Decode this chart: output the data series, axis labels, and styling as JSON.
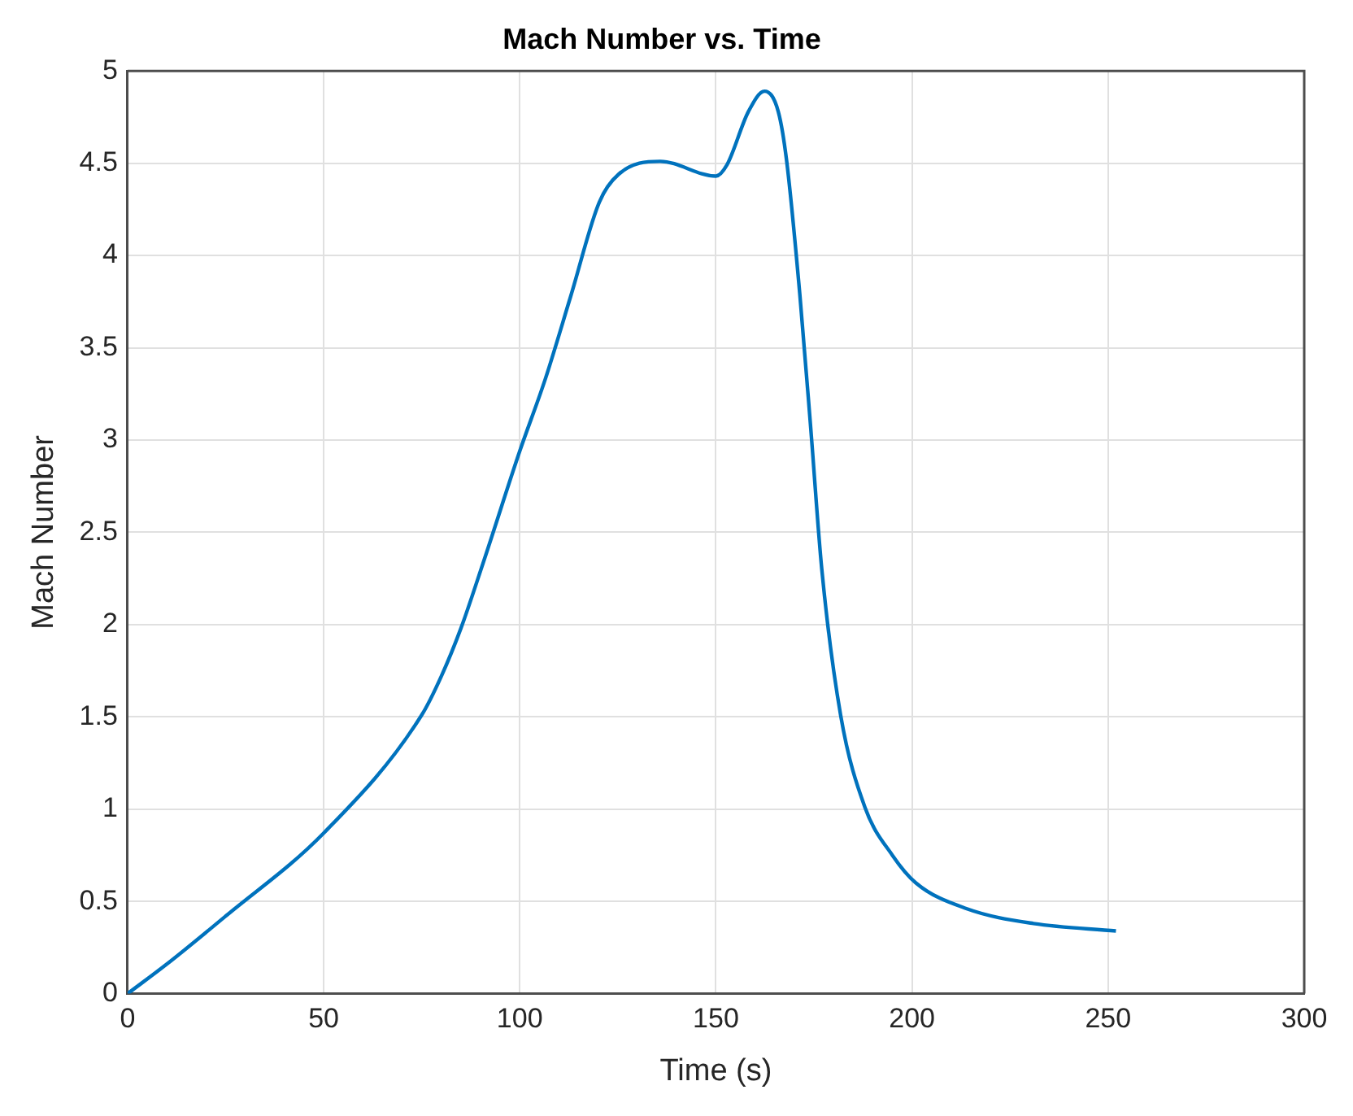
{
  "chart_data": {
    "type": "line",
    "title": "Mach Number vs. Time",
    "xlabel": "Time (s)",
    "ylabel": "Mach Number",
    "x": [
      0,
      10,
      25,
      50,
      75,
      80,
      85,
      90.6,
      100,
      106.5,
      113,
      120.3,
      125.2,
      135.8,
      150,
      152.8,
      158.3,
      162.4,
      165.9,
      168,
      171.4,
      174.2,
      177,
      181.8,
      188,
      195,
      201,
      214,
      231,
      252
    ],
    "series": [
      {
        "color": "#0072bd",
        "values": [
          0,
          0.16,
          0.42,
          0.87,
          1.51,
          1.72,
          1.98,
          2.33,
          2.94,
          3.33,
          3.78,
          4.29,
          4.44,
          4.51,
          4.43,
          4.49,
          4.78,
          4.89,
          4.78,
          4.52,
          3.79,
          3.06,
          2.3,
          1.51,
          1.01,
          0.75,
          0.6,
          0.46,
          0.38,
          0.34
        ]
      }
    ],
    "xlim": [
      0,
      300
    ],
    "xticks": [
      0,
      50,
      100,
      150,
      200,
      250,
      300
    ],
    "ylim": [
      0,
      5
    ],
    "yticks": [
      0,
      0.5,
      1,
      1.5,
      2,
      2.5,
      3,
      3.5,
      4,
      4.5,
      5
    ],
    "grid": true,
    "legend": false,
    "marker": "none",
    "line_style": "solid"
  }
}
